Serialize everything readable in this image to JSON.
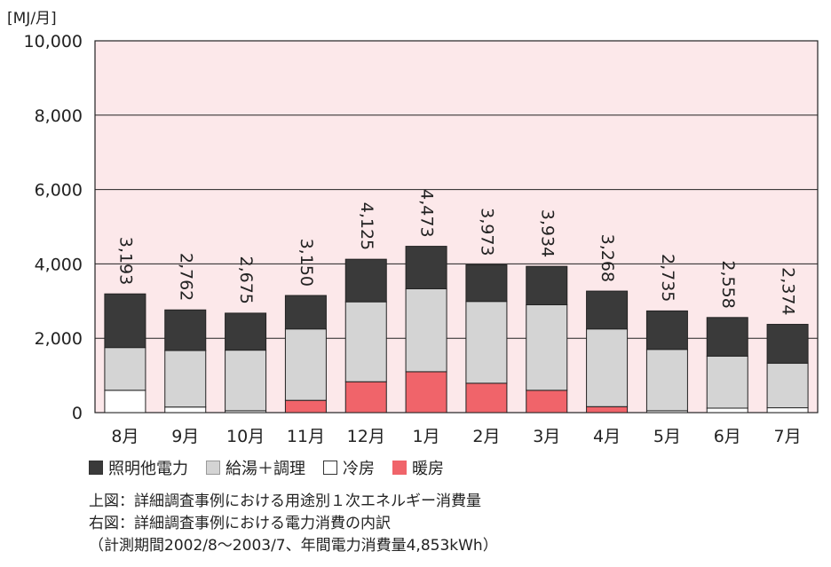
{
  "chart_data": {
    "type": "bar",
    "stacked": true,
    "unit_label": "[MJ/月]",
    "categories": [
      "8月",
      "9月",
      "10月",
      "11月",
      "12月",
      "1月",
      "2月",
      "3月",
      "4月",
      "5月",
      "6月",
      "7月"
    ],
    "totals": [
      "3,193",
      "2,762",
      "2,675",
      "3,150",
      "4,125",
      "4,473",
      "3,973",
      "3,934",
      "3,268",
      "2,735",
      "2,558",
      "2,374"
    ],
    "ylim": [
      0,
      10000
    ],
    "yticks": [
      0,
      2000,
      4000,
      6000,
      8000,
      10000
    ],
    "ytick_labels": [
      "0",
      "2,000",
      "4,000",
      "6,000",
      "8,000",
      "10,000"
    ],
    "grid": true,
    "series": [
      {
        "name": "暖房",
        "color": "#f0646a",
        "values": [
          0,
          0,
          0,
          330,
          830,
          1100,
          790,
          600,
          160,
          0,
          0,
          0
        ]
      },
      {
        "name": "冷房",
        "color": "#ffffff",
        "values": [
          600,
          150,
          50,
          0,
          0,
          0,
          0,
          0,
          0,
          50,
          120,
          130
        ]
      },
      {
        "name": "給湯＋調理",
        "color": "#d4d4d4",
        "values": [
          1150,
          1520,
          1630,
          1920,
          2150,
          2230,
          2200,
          2300,
          2090,
          1650,
          1400,
          1200
        ]
      },
      {
        "name": "照明他電力",
        "color": "#3a3a3a",
        "values": [
          1443,
          1092,
          995,
          900,
          1145,
          1143,
          983,
          1034,
          1018,
          1035,
          1038,
          1044
        ]
      }
    ],
    "legend_order": [
      "照明他電力",
      "給湯＋調理",
      "冷房",
      "暖房"
    ],
    "legend_placement": "bottom-left",
    "plot_background": "#fce8ea"
  },
  "captions": {
    "line1": "上図：詳細調査事例における用途別１次エネルギー消費量",
    "line2": "右図：詳細調査事例における電力消費の内訳",
    "line3": "（計測期間2002/8〜2003/7、年間電力消費量4,853kWh）"
  }
}
